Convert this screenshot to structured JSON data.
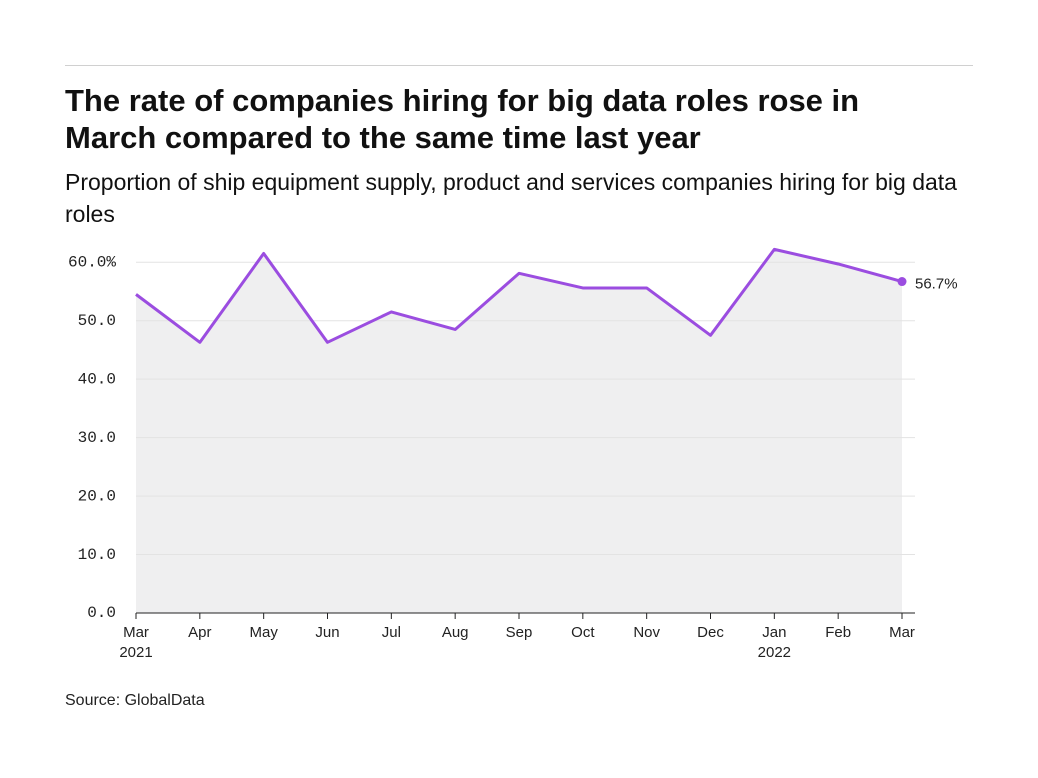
{
  "chart_data": {
    "type": "line",
    "title": "The rate of companies hiring for big data roles rose in March compared to the same time last year",
    "subtitle": "Proportion of ship equipment supply, product and services companies hiring for big data roles",
    "source": "Source: GlobalData",
    "categories": [
      "Mar",
      "Apr",
      "May",
      "Jun",
      "Jul",
      "Aug",
      "Sep",
      "Oct",
      "Nov",
      "Dec",
      "Jan",
      "Feb",
      "Mar"
    ],
    "category_years": [
      "2021",
      null,
      null,
      null,
      null,
      null,
      null,
      null,
      null,
      null,
      "2022",
      null,
      null
    ],
    "values": [
      54.5,
      46.3,
      61.5,
      46.3,
      51.5,
      48.5,
      58.1,
      55.6,
      55.6,
      47.5,
      62.2,
      59.7,
      56.7
    ],
    "value_labels": [
      null,
      null,
      null,
      null,
      null,
      null,
      null,
      null,
      null,
      null,
      null,
      null,
      "56.7%"
    ],
    "color": "#9b4de0",
    "area_color": "#efeff0",
    "ylim": [
      0,
      65
    ],
    "yticks": [
      {
        "value": 0,
        "label": "0.0"
      },
      {
        "value": 10,
        "label": "10.0"
      },
      {
        "value": 20,
        "label": "20.0"
      },
      {
        "value": 30,
        "label": "30.0"
      },
      {
        "value": 40,
        "label": "40.0"
      },
      {
        "value": 50,
        "label": "50.0"
      },
      {
        "value": 60,
        "label": "60.0%"
      }
    ],
    "grid": true
  }
}
